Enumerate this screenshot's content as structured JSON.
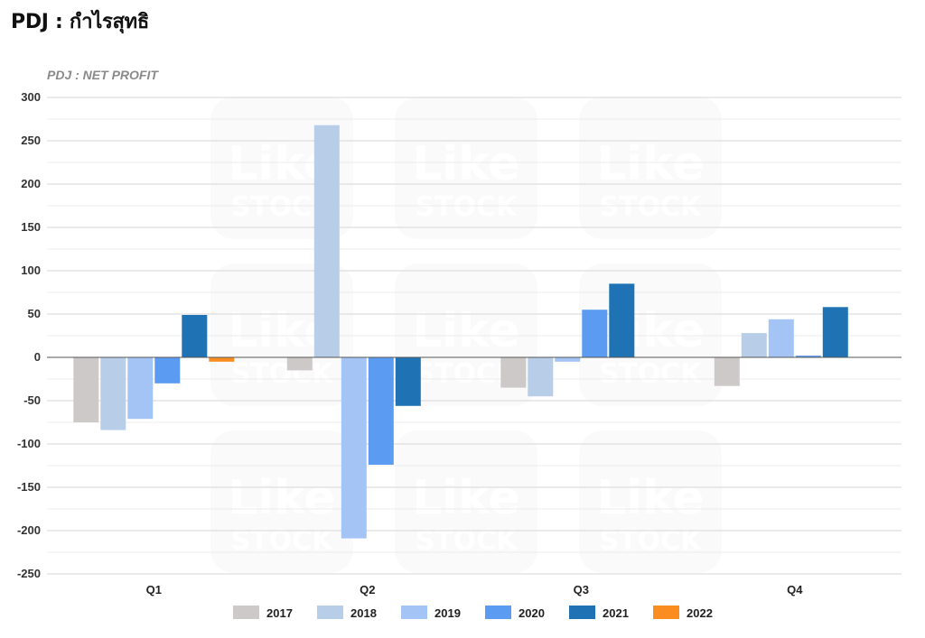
{
  "page": {
    "title": "PDJ : กำไรสุทธิ"
  },
  "watermark": {
    "line1": "Like",
    "line2": "STOCK"
  },
  "chart_data": {
    "type": "bar",
    "title": "PDJ : NET PROFIT",
    "categories": [
      "Q1",
      "Q2",
      "Q3",
      "Q4"
    ],
    "ylim": [
      -250,
      300
    ],
    "yticks": [
      300,
      250,
      200,
      150,
      100,
      50,
      0,
      -50,
      -100,
      -150,
      -200,
      -250
    ],
    "grid": true,
    "legend_position": "bottom",
    "series": [
      {
        "name": "2017",
        "color": "#cdc9c9",
        "values": [
          -75,
          -15,
          -35,
          -33
        ]
      },
      {
        "name": "2018",
        "color": "#b8cde8",
        "values": [
          -84,
          268,
          -45,
          28
        ]
      },
      {
        "name": "2019",
        "color": "#a3c4f5",
        "values": [
          -71,
          -209,
          -5,
          44
        ]
      },
      {
        "name": "2020",
        "color": "#5b9bf2",
        "values": [
          -30,
          -124,
          55,
          2
        ]
      },
      {
        "name": "2021",
        "color": "#1f73b4",
        "values": [
          49,
          -56,
          85,
          58
        ]
      },
      {
        "name": "2022",
        "color": "#fb8c1f",
        "values": [
          -5,
          null,
          null,
          null
        ]
      }
    ]
  }
}
